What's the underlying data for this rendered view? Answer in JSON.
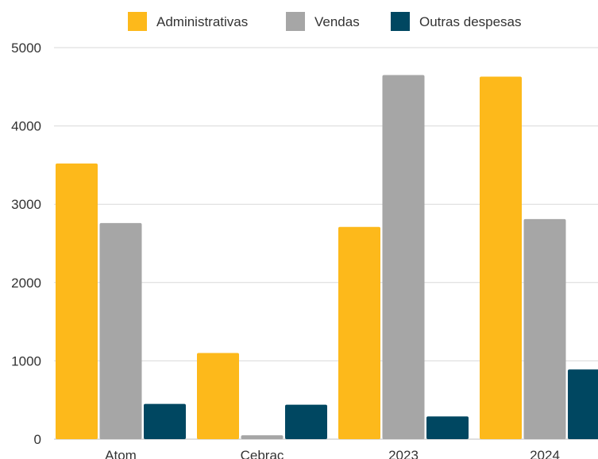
{
  "chart_data": {
    "type": "bar",
    "categories": [
      "Atom",
      "Cebrac",
      "2023",
      "2024"
    ],
    "series": [
      {
        "name": "Administrativas",
        "color": "#FDB91B",
        "values": [
          3520,
          1100,
          2710,
          4630
        ]
      },
      {
        "name": "Vendas",
        "color": "#A6A6A6",
        "values": [
          2760,
          50,
          4650,
          2810
        ]
      },
      {
        "name": "Outras despesas",
        "color": "#004761",
        "values": [
          450,
          440,
          290,
          890
        ]
      }
    ],
    "yticks": [
      "0",
      "1000",
      "2000",
      "3000",
      "4000",
      "5000"
    ],
    "ylim": [
      0,
      5000
    ],
    "grid": true,
    "legend_position": "top"
  }
}
